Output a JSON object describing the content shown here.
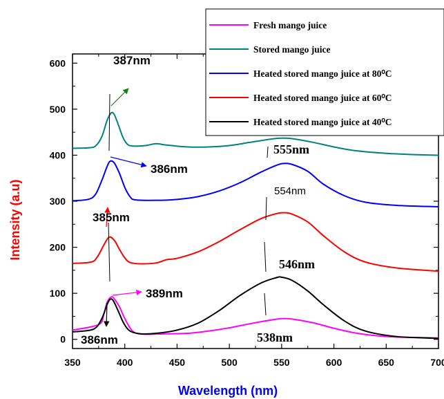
{
  "chart_data": {
    "type": "line",
    "xlabel": "Wavelength (nm)",
    "ylabel": "Intensity (a.u)",
    "xlim": [
      350,
      700
    ],
    "ylim": [
      -20,
      620
    ],
    "x_ticks": [
      350,
      400,
      450,
      500,
      550,
      600,
      650,
      700
    ],
    "y_ticks": [
      0,
      100,
      200,
      300,
      400,
      500,
      600
    ],
    "legend_position": "top-right",
    "series": [
      {
        "name": "Fresh mango juice",
        "color": "#ff00ff",
        "points": [
          [
            350,
            20
          ],
          [
            375,
            32
          ],
          [
            380,
            55
          ],
          [
            383,
            80
          ],
          [
            387,
            92
          ],
          [
            390,
            88
          ],
          [
            395,
            70
          ],
          [
            400,
            45
          ],
          [
            405,
            25
          ],
          [
            410,
            14
          ],
          [
            420,
            11
          ],
          [
            440,
            12
          ],
          [
            460,
            13
          ],
          [
            480,
            18
          ],
          [
            500,
            25
          ],
          [
            520,
            34
          ],
          [
            540,
            42
          ],
          [
            550,
            45
          ],
          [
            560,
            44
          ],
          [
            580,
            36
          ],
          [
            600,
            24
          ],
          [
            620,
            14
          ],
          [
            640,
            8
          ],
          [
            660,
            5
          ],
          [
            680,
            4
          ],
          [
            700,
            3
          ]
        ]
      },
      {
        "name": "Stored mango juice",
        "color": "#008080",
        "points": [
          [
            350,
            415
          ],
          [
            365,
            416
          ],
          [
            372,
            420
          ],
          [
            378,
            440
          ],
          [
            383,
            475
          ],
          [
            387,
            492
          ],
          [
            390,
            488
          ],
          [
            394,
            465
          ],
          [
            398,
            440
          ],
          [
            402,
            425
          ],
          [
            407,
            420
          ],
          [
            420,
            421
          ],
          [
            430,
            425
          ],
          [
            440,
            422
          ],
          [
            460,
            418
          ],
          [
            480,
            418
          ],
          [
            500,
            421
          ],
          [
            520,
            428
          ],
          [
            540,
            435
          ],
          [
            550,
            437
          ],
          [
            560,
            436
          ],
          [
            580,
            428
          ],
          [
            600,
            418
          ],
          [
            620,
            410
          ],
          [
            650,
            404
          ],
          [
            680,
            401
          ],
          [
            700,
            400
          ]
        ]
      },
      {
        "name": "Heated stored mango juice at 80⁰C",
        "color": "#0000ff",
        "points": [
          [
            350,
            301
          ],
          [
            365,
            304
          ],
          [
            372,
            315
          ],
          [
            378,
            345
          ],
          [
            383,
            375
          ],
          [
            386,
            387
          ],
          [
            390,
            383
          ],
          [
            395,
            360
          ],
          [
            400,
            330
          ],
          [
            405,
            310
          ],
          [
            410,
            303
          ],
          [
            430,
            302
          ],
          [
            450,
            304
          ],
          [
            470,
            310
          ],
          [
            490,
            322
          ],
          [
            510,
            340
          ],
          [
            530,
            363
          ],
          [
            545,
            378
          ],
          [
            552,
            382
          ],
          [
            560,
            380
          ],
          [
            575,
            365
          ],
          [
            590,
            337
          ],
          [
            610,
            312
          ],
          [
            630,
            298
          ],
          [
            660,
            291
          ],
          [
            700,
            288
          ]
        ]
      },
      {
        "name": "Heated stored mango juice at 60⁰C",
        "color": "#ff0000",
        "points": [
          [
            350,
            165
          ],
          [
            368,
            168
          ],
          [
            374,
            180
          ],
          [
            380,
            205
          ],
          [
            385,
            222
          ],
          [
            390,
            215
          ],
          [
            395,
            195
          ],
          [
            400,
            177
          ],
          [
            405,
            167
          ],
          [
            415,
            164
          ],
          [
            430,
            166
          ],
          [
            440,
            173
          ],
          [
            450,
            176
          ],
          [
            470,
            190
          ],
          [
            490,
            212
          ],
          [
            510,
            238
          ],
          [
            530,
            262
          ],
          [
            545,
            273
          ],
          [
            552,
            275
          ],
          [
            560,
            272
          ],
          [
            575,
            255
          ],
          [
            590,
            225
          ],
          [
            610,
            190
          ],
          [
            630,
            168
          ],
          [
            660,
            155
          ],
          [
            700,
            148
          ]
        ]
      },
      {
        "name": "Heated stored mango juice at 40⁰C",
        "color": "#000000",
        "points": [
          [
            350,
            16
          ],
          [
            370,
            22
          ],
          [
            378,
            45
          ],
          [
            383,
            75
          ],
          [
            386,
            87
          ],
          [
            389,
            84
          ],
          [
            394,
            60
          ],
          [
            399,
            35
          ],
          [
            405,
            18
          ],
          [
            415,
            12
          ],
          [
            430,
            13
          ],
          [
            450,
            20
          ],
          [
            470,
            35
          ],
          [
            490,
            62
          ],
          [
            510,
            95
          ],
          [
            530,
            122
          ],
          [
            545,
            134
          ],
          [
            550,
            135
          ],
          [
            560,
            128
          ],
          [
            575,
            105
          ],
          [
            590,
            75
          ],
          [
            610,
            40
          ],
          [
            630,
            18
          ],
          [
            660,
            6
          ],
          [
            700,
            2
          ]
        ]
      }
    ],
    "annotations": [
      {
        "text": "387nm"
      },
      {
        "text": "386nm"
      },
      {
        "text": "385nm"
      },
      {
        "text": "389nm"
      },
      {
        "text": "386nm"
      },
      {
        "text": "555nm"
      },
      {
        "text": "554nm"
      },
      {
        "text": "546nm"
      },
      {
        "text": "538nm"
      }
    ]
  }
}
